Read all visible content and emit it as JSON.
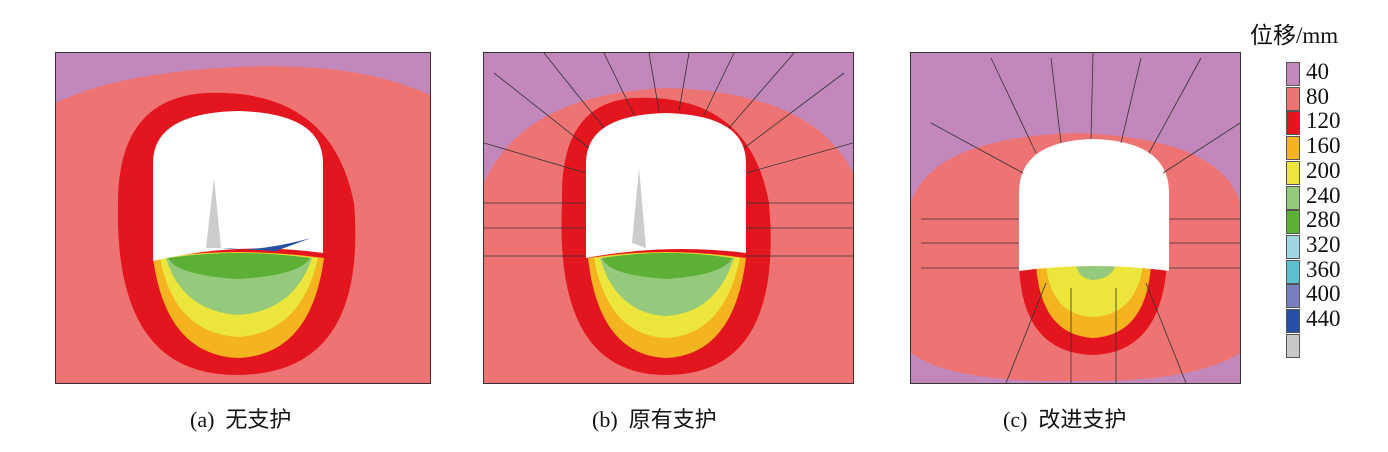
{
  "legend": {
    "title": "位移/mm",
    "levels": [
      {
        "label": "40",
        "color": "#c287bb"
      },
      {
        "label": "80",
        "color": "#ee7474"
      },
      {
        "label": "120",
        "color": "#e3161f"
      },
      {
        "label": "160",
        "color": "#f3b41f"
      },
      {
        "label": "200",
        "color": "#ebe53c"
      },
      {
        "label": "240",
        "color": "#95c97b"
      },
      {
        "label": "280",
        "color": "#5bb035"
      },
      {
        "label": "320",
        "color": "#a0d6e1"
      },
      {
        "label": "360",
        "color": "#5fc0d0"
      },
      {
        "label": "400",
        "color": "#7a80bd"
      },
      {
        "label": "440",
        "color": "#2550a5"
      },
      {
        "label": "",
        "color": "#c9c9c9"
      }
    ]
  },
  "panels": [
    {
      "caption": "(a)  无支护"
    },
    {
      "caption": "(b)  原有支护"
    },
    {
      "caption": "(c)  改进支护"
    }
  ]
}
